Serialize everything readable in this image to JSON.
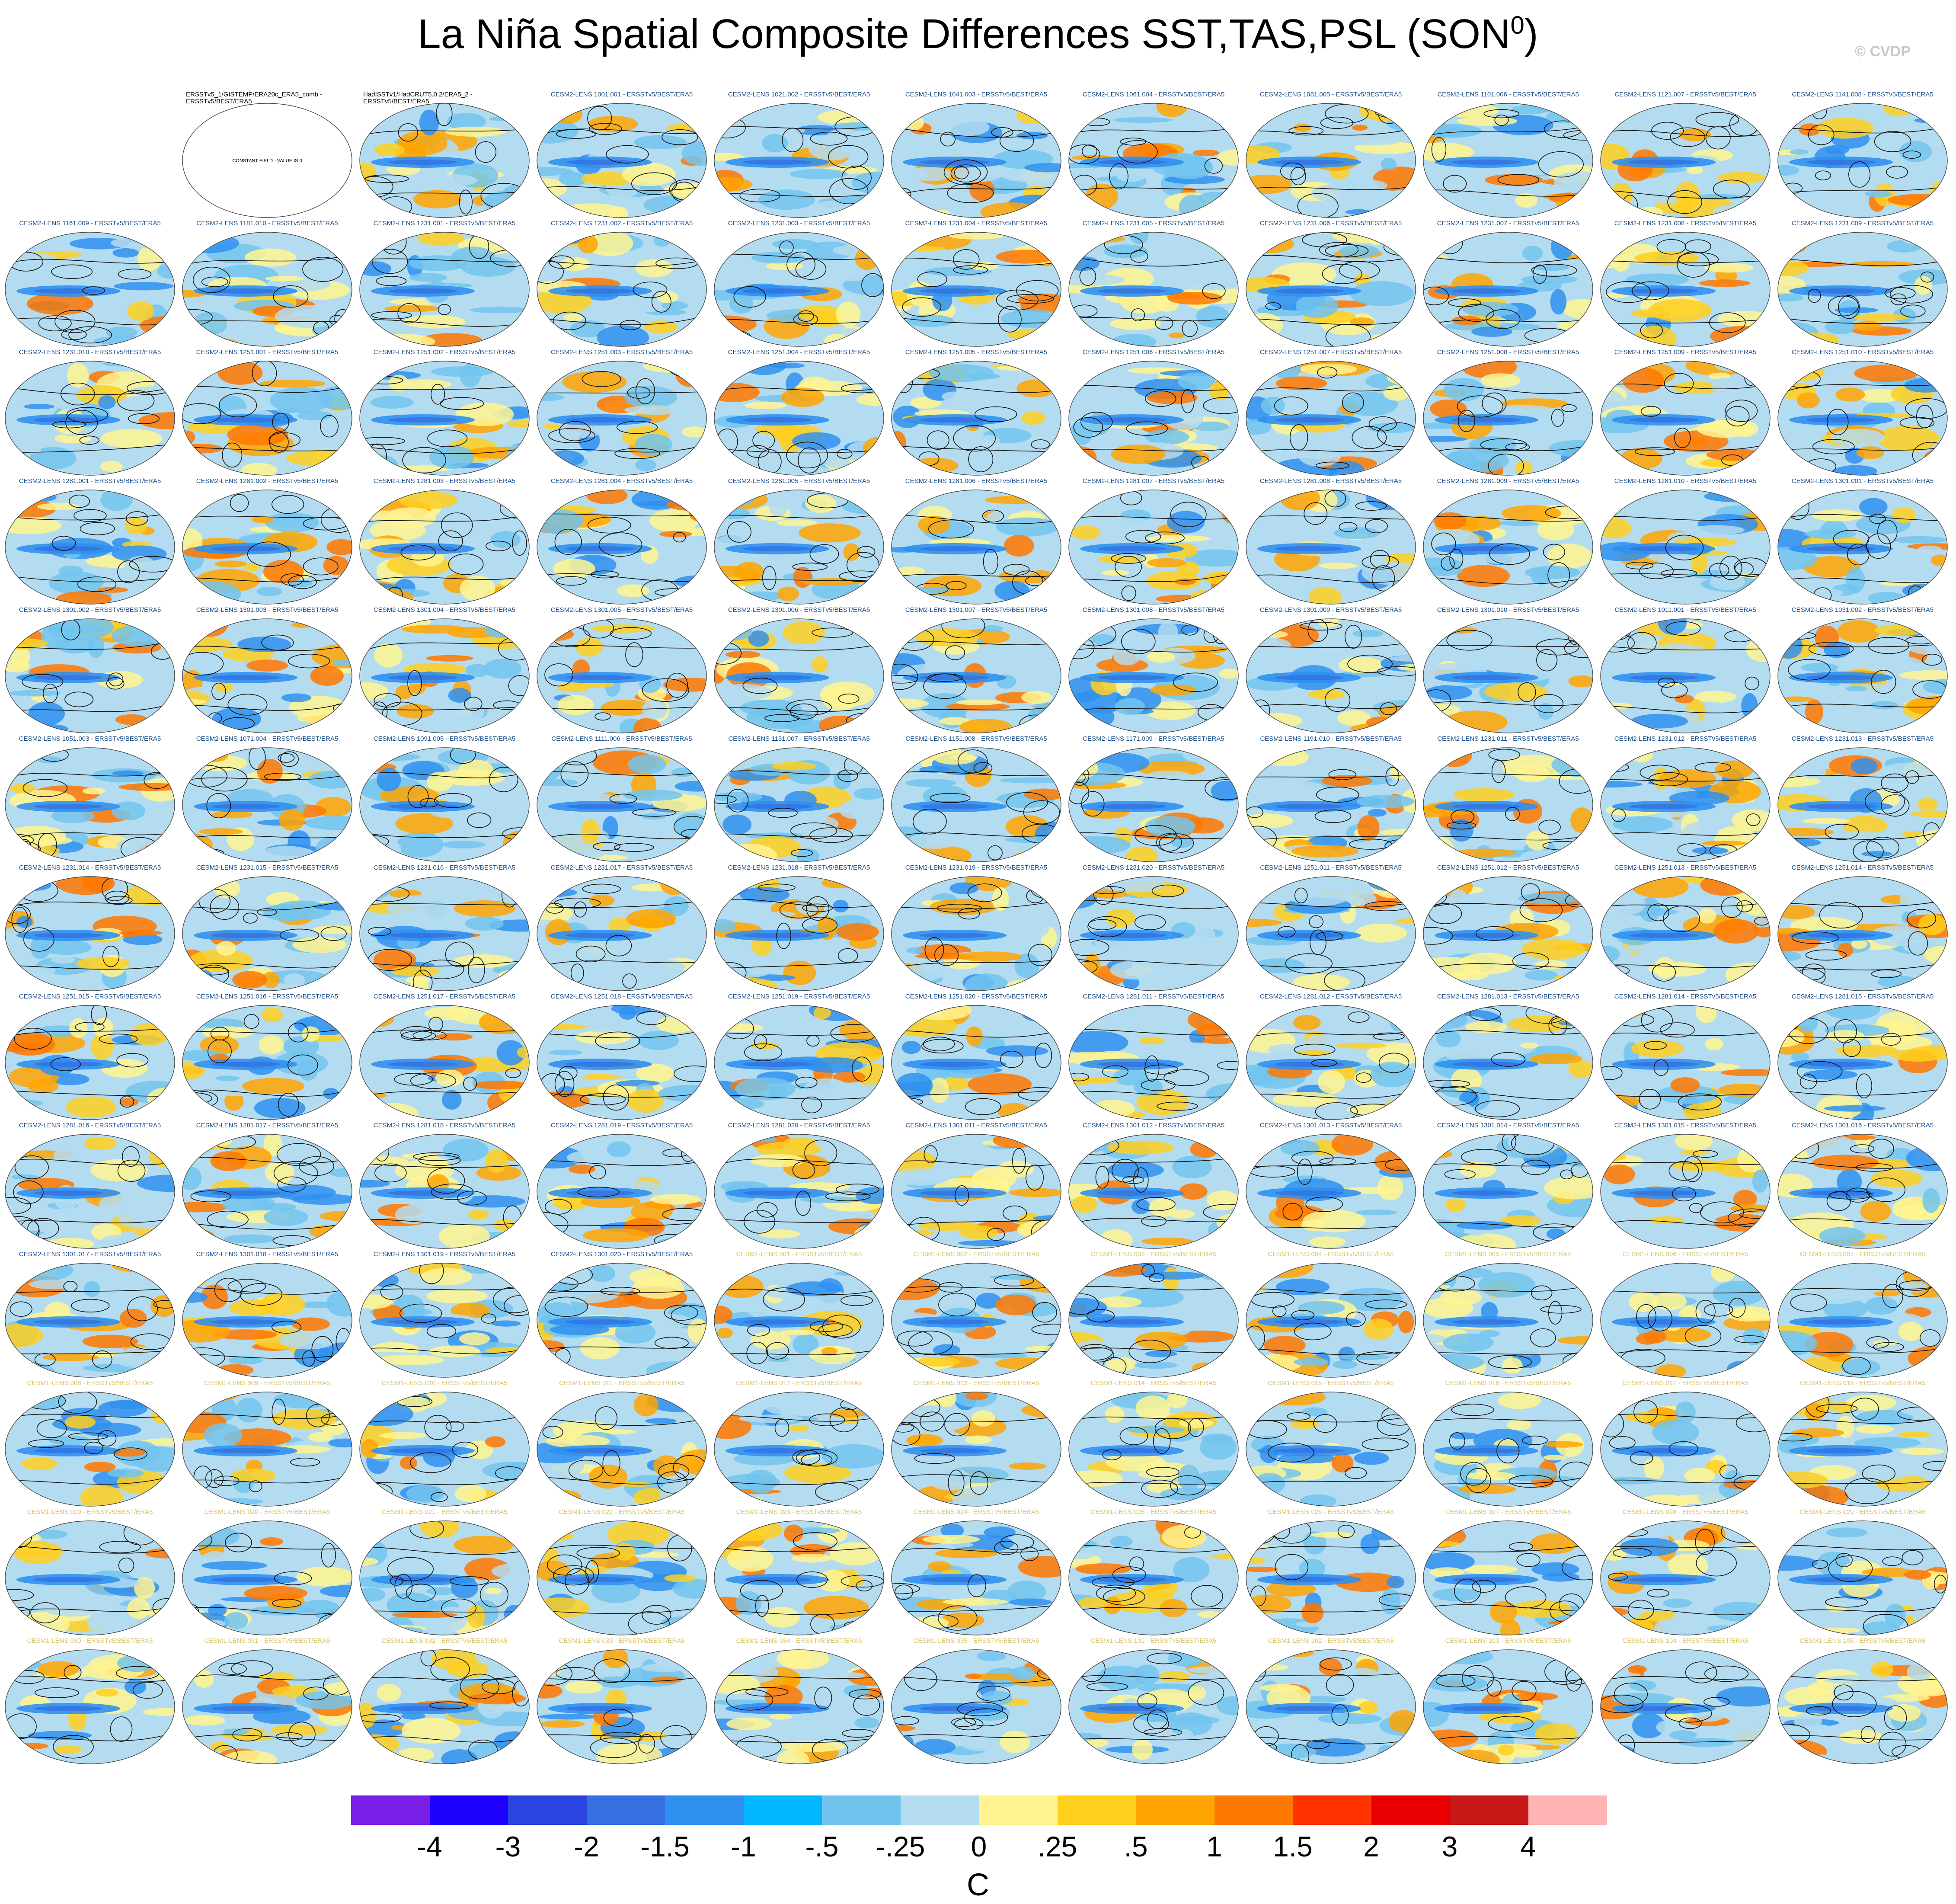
{
  "title": "La Niña Spatial Composite Differences SST,TAS,PSL (SON",
  "title_sup": "0",
  "title_close": ")",
  "credit": "© CVDP",
  "constant_field_note": "CONSTANT FIELD - VALUE IS 0",
  "colors": {
    "ocean_base": "#b4dcf0",
    "land_fill": "#ffffff",
    "contour": "#111111",
    "label_cesm2": "#1a4e8a",
    "label_cesm1": "#d8c46a",
    "label_obs": "#000000"
  },
  "panels": [
    "ERSSTv5_1/GISTEMP/ERA20c_ERA5_comb - ERSSTv5/BEST/ERA5",
    "HadISSTv1/HadCRUT5.0.2/ERA5_2 - ERSSTv5/BEST/ERA5",
    "CESM2-LENS 1001.001 - ERSSTv5/BEST/ERA5",
    "CESM2-LENS 1021.002 - ERSSTv5/BEST/ERA5",
    "CESM2-LENS 1041.003 - ERSSTv5/BEST/ERA5",
    "CESM2-LENS 1061.004 - ERSSTv5/BEST/ERA5",
    "CESM2-LENS 1081.005 - ERSSTv5/BEST/ERA5",
    "CESM2-LENS 1101.006 - ERSSTv5/BEST/ERA5",
    "CESM2-LENS 1121.007 - ERSSTv5/BEST/ERA5",
    "CESM2-LENS 1141.008 - ERSSTv5/BEST/ERA5",
    "CESM2-LENS 1161.009 - ERSSTv5/BEST/ERA5",
    "CESM2-LENS 1181.010 - ERSSTv5/BEST/ERA5",
    "CESM2-LENS 1231.001 - ERSSTv5/BEST/ERA5",
    "CESM2-LENS 1231.002 - ERSSTv5/BEST/ERA5",
    "CESM2-LENS 1231.003 - ERSSTv5/BEST/ERA5",
    "CESM2-LENS 1231.004 - ERSSTv5/BEST/ERA5",
    "CESM2-LENS 1231.005 - ERSSTv5/BEST/ERA5",
    "CESM2-LENS 1231.006 - ERSSTv5/BEST/ERA5",
    "CESM2-LENS 1231.007 - ERSSTv5/BEST/ERA5",
    "CESM2-LENS 1231.008 - ERSSTv5/BEST/ERA5",
    "CESM2-LENS 1231.009 - ERSSTv5/BEST/ERA5",
    "CESM2-LENS 1231.010 - ERSSTv5/BEST/ERA5",
    "CESM2-LENS 1251.001 - ERSSTv5/BEST/ERA5",
    "CESM2-LENS 1251.002 - ERSSTv5/BEST/ERA5",
    "CESM2-LENS 1251.003 - ERSSTv5/BEST/ERA5",
    "CESM2-LENS 1251.004 - ERSSTv5/BEST/ERA5",
    "CESM2-LENS 1251.005 - ERSSTv5/BEST/ERA5",
    "CESM2-LENS 1251.006 - ERSSTv5/BEST/ERA5",
    "CESM2-LENS 1251.007 - ERSSTv5/BEST/ERA5",
    "CESM2-LENS 1251.008 - ERSSTv5/BEST/ERA5",
    "CESM2-LENS 1251.009 - ERSSTv5/BEST/ERA5",
    "CESM2-LENS 1251.010 - ERSSTv5/BEST/ERA5",
    "CESM2-LENS 1281.001 - ERSSTv5/BEST/ERA5",
    "CESM2-LENS 1281.002 - ERSSTv5/BEST/ERA5",
    "CESM2-LENS 1281.003 - ERSSTv5/BEST/ERA5",
    "CESM2-LENS 1281.004 - ERSSTv5/BEST/ERA5",
    "CESM2-LENS 1281.005 - ERSSTv5/BEST/ERA5",
    "CESM2-LENS 1281.006 - ERSSTv5/BEST/ERA5",
    "CESM2-LENS 1281.007 - ERSSTv5/BEST/ERA5",
    "CESM2-LENS 1281.008 - ERSSTv5/BEST/ERA5",
    "CESM2-LENS 1281.009 - ERSSTv5/BEST/ERA5",
    "CESM2-LENS 1281.010 - ERSSTv5/BEST/ERA5",
    "CESM2-LENS 1301.001 - ERSSTv5/BEST/ERA5",
    "CESM2-LENS 1301.002 - ERSSTv5/BEST/ERA5",
    "CESM2-LENS 1301.003 - ERSSTv5/BEST/ERA5",
    "CESM2-LENS 1301.004 - ERSSTv5/BEST/ERA5",
    "CESM2-LENS 1301.005 - ERSSTv5/BEST/ERA5",
    "CESM2-LENS 1301.006 - ERSSTv5/BEST/ERA5",
    "CESM2-LENS 1301.007 - ERSSTv5/BEST/ERA5",
    "CESM2-LENS 1301.008 - ERSSTv5/BEST/ERA5",
    "CESM2-LENS 1301.009 - ERSSTv5/BEST/ERA5",
    "CESM2-LENS 1301.010 - ERSSTv5/BEST/ERA5",
    "CESM2-LENS 1011.001 - ERSSTv5/BEST/ERA5",
    "CESM2-LENS 1031.002 - ERSSTv5/BEST/ERA5",
    "CESM2-LENS 1051.003 - ERSSTv5/BEST/ERA5",
    "CESM2-LENS 1071.004 - ERSSTv5/BEST/ERA5",
    "CESM2-LENS 1091.005 - ERSSTv5/BEST/ERA5",
    "CESM2-LENS 1111.006 - ERSSTv5/BEST/ERA5",
    "CESM2-LENS 1131.007 - ERSSTv5/BEST/ERA5",
    "CESM2-LENS 1151.008 - ERSSTv5/BEST/ERA5",
    "CESM2-LENS 1171.009 - ERSSTv5/BEST/ERA5",
    "CESM2-LENS 1191.010 - ERSSTv5/BEST/ERA5",
    "CESM2-LENS 1231.011 - ERSSTv5/BEST/ERA5",
    "CESM2-LENS 1231.012 - ERSSTv5/BEST/ERA5",
    "CESM2-LENS 1231.013 - ERSSTv5/BEST/ERA5",
    "CESM2-LENS 1231.014 - ERSSTv5/BEST/ERA5",
    "CESM2-LENS 1231.015 - ERSSTv5/BEST/ERA5",
    "CESM2-LENS 1231.016 - ERSSTv5/BEST/ERA5",
    "CESM2-LENS 1231.017 - ERSSTv5/BEST/ERA5",
    "CESM2-LENS 1231.018 - ERSSTv5/BEST/ERA5",
    "CESM2-LENS 1231.019 - ERSSTv5/BEST/ERA5",
    "CESM2-LENS 1231.020 - ERSSTv5/BEST/ERA5",
    "CESM2-LENS 1251.011 - ERSSTv5/BEST/ERA5",
    "CESM2-LENS 1251.012 - ERSSTv5/BEST/ERA5",
    "CESM2-LENS 1251.013 - ERSSTv5/BEST/ERA5",
    "CESM2-LENS 1251.014 - ERSSTv5/BEST/ERA5",
    "CESM2-LENS 1251.015 - ERSSTv5/BEST/ERA5",
    "CESM2-LENS 1251.016 - ERSSTv5/BEST/ERA5",
    "CESM2-LENS 1251.017 - ERSSTv5/BEST/ERA5",
    "CESM2-LENS 1251.018 - ERSSTv5/BEST/ERA5",
    "CESM2-LENS 1251.019 - ERSSTv5/BEST/ERA5",
    "CESM2-LENS 1251.020 - ERSSTv5/BEST/ERA5",
    "CESM2-LENS 1281.011 - ERSSTv5/BEST/ERA5",
    "CESM2-LENS 1281.012 - ERSSTv5/BEST/ERA5",
    "CESM2-LENS 1281.013 - ERSSTv5/BEST/ERA5",
    "CESM2-LENS 1281.014 - ERSSTv5/BEST/ERA5",
    "CESM2-LENS 1281.015 - ERSSTv5/BEST/ERA5",
    "CESM2-LENS 1281.016 - ERSSTv5/BEST/ERA5",
    "CESM2-LENS 1281.017 - ERSSTv5/BEST/ERA5",
    "CESM2-LENS 1281.018 - ERSSTv5/BEST/ERA5",
    "CESM2-LENS 1281.019 - ERSSTv5/BEST/ERA5",
    "CESM2-LENS 1281.020 - ERSSTv5/BEST/ERA5",
    "CESM2-LENS 1301.011 - ERSSTv5/BEST/ERA5",
    "CESM2-LENS 1301.012 - ERSSTv5/BEST/ERA5",
    "CESM2-LENS 1301.013 - ERSSTv5/BEST/ERA5",
    "CESM2-LENS 1301.014 - ERSSTv5/BEST/ERA5",
    "CESM2-LENS 1301.015 - ERSSTv5/BEST/ERA5",
    "CESM2-LENS 1301.016 - ERSSTv5/BEST/ERA5",
    "CESM2-LENS 1301.017 - ERSSTv5/BEST/ERA5",
    "CESM2-LENS 1301.018 - ERSSTv5/BEST/ERA5",
    "CESM2-LENS 1301.019 - ERSSTv5/BEST/ERA5",
    "CESM2-LENS 1301.020 - ERSSTv5/BEST/ERA5",
    "CESM1-LENS 001 - ERSSTv5/BEST/ERA5",
    "CESM1-LENS 002 - ERSSTv5/BEST/ERA5",
    "CESM1-LENS 003 - ERSSTv5/BEST/ERA5",
    "CESM1-LENS 004 - ERSSTv5/BEST/ERA5",
    "CESM1-LENS 005 - ERSSTv5/BEST/ERA5",
    "CESM1-LENS 006 - ERSSTv5/BEST/ERA5",
    "CESM1-LENS 007 - ERSSTv5/BEST/ERA5",
    "CESM1-LENS 008 - ERSSTv5/BEST/ERA5",
    "CESM1-LENS 009 - ERSSTv5/BEST/ERA5",
    "CESM1-LENS 010 - ERSSTv5/BEST/ERA5",
    "CESM1-LENS 011 - ERSSTv5/BEST/ERA5",
    "CESM1-LENS 012 - ERSSTv5/BEST/ERA5",
    "CESM1-LENS 013 - ERSSTv5/BEST/ERA5",
    "CESM1-LENS 014 - ERSSTv5/BEST/ERA5",
    "CESM1-LENS 015 - ERSSTv5/BEST/ERA5",
    "CESM1-LENS 016 - ERSSTv5/BEST/ERA5",
    "CESM1-LENS 017 - ERSSTv5/BEST/ERA5",
    "CESM1-LENS 018 - ERSSTv5/BEST/ERA5",
    "CESM1-LENS 019 - ERSSTv5/BEST/ERA5",
    "CESM1-LENS 020 - ERSSTv5/BEST/ERA5",
    "CESM1-LENS 021 - ERSSTv5/BEST/ERA5",
    "CESM1-LENS 022 - ERSSTv5/BEST/ERA5",
    "CESM1-LENS 023 - ERSSTv5/BEST/ERA5",
    "CESM1-LENS 024 - ERSSTv5/BEST/ERA5",
    "CESM1-LENS 025 - ERSSTv5/BEST/ERA5",
    "CESM1-LENS 026 - ERSSTv5/BEST/ERA5",
    "CESM1-LENS 027 - ERSSTv5/BEST/ERA5",
    "CESM1-LENS 028 - ERSSTv5/BEST/ERA5",
    "CESM1-LENS 029 - ERSSTv5/BEST/ERA5",
    "CESM1-LENS 030 - ERSSTv5/BEST/ERA5",
    "CESM1-LENS 031 - ERSSTv5/BEST/ERA5",
    "CESM1-LENS 032 - ERSSTv5/BEST/ERA5",
    "CESM1-LENS 033 - ERSSTv5/BEST/ERA5",
    "CESM1-LENS 034 - ERSSTv5/BEST/ERA5",
    "CESM1-LENS 035 - ERSSTv5/BEST/ERA5",
    "CESM1-LENS 101 - ERSSTv5/BEST/ERA5",
    "CESM1-LENS 102 - ERSSTv5/BEST/ERA5",
    "CESM1-LENS 103 - ERSSTv5/BEST/ERA5",
    "CESM1-LENS 104 - ERSSTv5/BEST/ERA5",
    "CESM1-LENS 105 - ERSSTv5/BEST/ERA5"
  ],
  "colorbar": {
    "colors": [
      "#7a1fe8",
      "#1e00ff",
      "#2a44e0",
      "#3470e0",
      "#2f90f0",
      "#00b6ff",
      "#72c4ee",
      "#b4dcf0",
      "#fff490",
      "#ffcf1e",
      "#ffa400",
      "#ff7800",
      "#ff3300",
      "#e80000",
      "#c81818",
      "#ffb4b4"
    ],
    "labels": [
      "-4",
      "-3",
      "-2",
      "-1.5",
      "-1",
      "-.5",
      "-.25",
      "0",
      ".25",
      ".5",
      "1",
      "1.5",
      "2",
      "3",
      "4"
    ],
    "units": "C"
  }
}
